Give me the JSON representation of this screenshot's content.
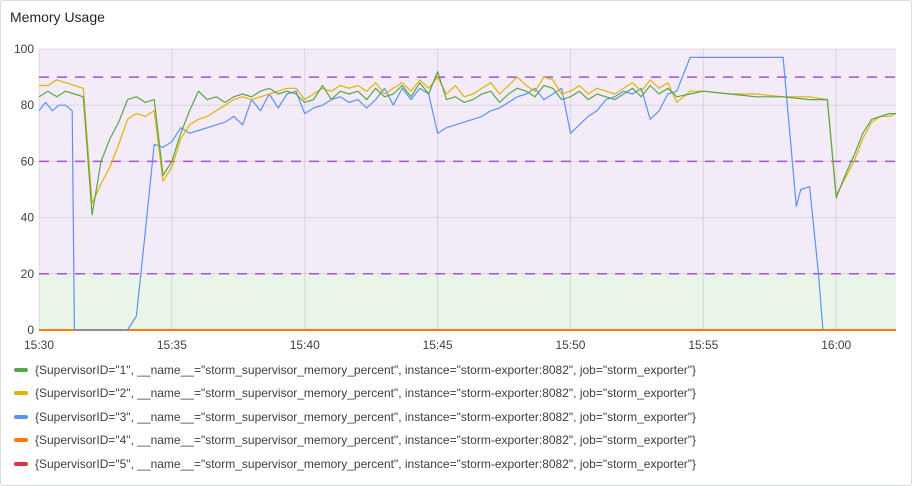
{
  "panel": {
    "title": "Memory Usage"
  },
  "chart_data": {
    "type": "line",
    "title": "Memory Usage",
    "x_range": [
      "15:30",
      "16:02:15"
    ],
    "ylim": [
      0,
      100
    ],
    "y_ticks": [
      0,
      20,
      40,
      60,
      80,
      100
    ],
    "x_ticks": [
      "15:30",
      "15:35",
      "15:40",
      "15:45",
      "15:50",
      "15:55",
      "16:00"
    ],
    "grid": true,
    "thresholds": [
      {
        "value": 20,
        "color": "#a352cc"
      },
      {
        "value": 60,
        "color": "#a352cc"
      },
      {
        "value": 90,
        "color": "#a352cc"
      }
    ],
    "threshold_bands": [
      {
        "from": 0,
        "to": 20,
        "color": "#73bf69"
      },
      {
        "from": 20,
        "to": 100,
        "color": "#b877d9"
      }
    ],
    "legend_placement": "bottom",
    "series": [
      {
        "name": "{SupervisorID=\"1\", __name__=\"storm_supervisor_memory_percent\", instance=\"storm-exporter:8082\", job=\"storm_exporter\"}",
        "color": "#56a64b",
        "x": [
          "15:30:00",
          "15:30:20",
          "15:30:40",
          "15:31:00",
          "15:31:20",
          "15:31:40",
          "15:32:00",
          "15:32:20",
          "15:32:40",
          "15:33:00",
          "15:33:20",
          "15:33:40",
          "15:34:00",
          "15:34:20",
          "15:34:40",
          "15:35:00",
          "15:35:20",
          "15:35:40",
          "15:36:00",
          "15:36:20",
          "15:36:40",
          "15:37:00",
          "15:37:20",
          "15:37:40",
          "15:38:00",
          "15:38:20",
          "15:38:40",
          "15:39:00",
          "15:39:20",
          "15:39:40",
          "15:40:00",
          "15:40:20",
          "15:40:40",
          "15:41:00",
          "15:41:20",
          "15:41:40",
          "15:42:00",
          "15:42:20",
          "15:42:40",
          "15:43:00",
          "15:43:20",
          "15:43:40",
          "15:44:00",
          "15:44:20",
          "15:44:40",
          "15:45:00",
          "15:45:20",
          "15:45:40",
          "15:46:00",
          "15:46:20",
          "15:46:40",
          "15:47:00",
          "15:47:20",
          "15:47:40",
          "15:48:00",
          "15:48:20",
          "15:48:40",
          "15:49:00",
          "15:49:20",
          "15:49:40",
          "15:50:00",
          "15:50:20",
          "15:50:40",
          "15:51:00",
          "15:51:20",
          "15:51:40",
          "15:52:00",
          "15:52:20",
          "15:52:40",
          "15:53:00",
          "15:53:20",
          "15:53:40",
          "15:54:00",
          "15:54:30",
          "15:55:00",
          "15:56:00",
          "15:57:00",
          "15:58:00",
          "15:59:00",
          "15:59:40",
          "16:00:00",
          "16:00:20",
          "16:00:40",
          "16:01:00",
          "16:01:20",
          "16:01:40",
          "16:02:00",
          "16:02:15"
        ],
        "values": [
          83,
          85,
          83,
          85,
          84,
          83,
          41,
          60,
          68,
          74,
          82,
          83,
          81,
          82,
          55,
          60,
          70,
          78,
          85,
          82,
          83,
          81,
          83,
          84,
          83,
          85,
          86,
          84,
          85,
          84,
          81,
          82,
          87,
          82,
          85,
          84,
          85,
          82,
          86,
          83,
          84,
          87,
          83,
          88,
          84,
          92,
          82,
          83,
          81,
          82,
          84,
          85,
          81,
          84,
          86,
          85,
          83,
          87,
          86,
          82,
          83,
          85,
          82,
          84,
          83,
          82,
          84,
          86,
          83,
          87,
          84,
          86,
          83,
          84,
          85,
          84,
          83,
          83,
          82,
          82,
          47,
          55,
          62,
          70,
          75,
          76,
          77,
          77
        ]
      },
      {
        "name": "{SupervisorID=\"2\", __name__=\"storm_supervisor_memory_percent\", instance=\"storm-exporter:8082\", job=\"storm_exporter\"}",
        "color": "#e0b400",
        "x": [
          "15:30:00",
          "15:30:20",
          "15:30:40",
          "15:31:00",
          "15:31:20",
          "15:31:40",
          "15:32:00",
          "15:32:20",
          "15:32:40",
          "15:33:00",
          "15:33:20",
          "15:33:40",
          "15:34:00",
          "15:34:20",
          "15:34:40",
          "15:35:00",
          "15:35:20",
          "15:35:40",
          "15:36:00",
          "15:36:20",
          "15:36:40",
          "15:37:00",
          "15:37:20",
          "15:37:40",
          "15:38:00",
          "15:38:20",
          "15:38:40",
          "15:39:00",
          "15:39:20",
          "15:39:40",
          "15:40:00",
          "15:40:20",
          "15:40:40",
          "15:41:00",
          "15:41:20",
          "15:41:40",
          "15:42:00",
          "15:42:20",
          "15:42:40",
          "15:43:00",
          "15:43:20",
          "15:43:40",
          "15:44:00",
          "15:44:20",
          "15:44:40",
          "15:45:00",
          "15:45:20",
          "15:45:40",
          "15:46:00",
          "15:46:20",
          "15:46:40",
          "15:47:00",
          "15:47:20",
          "15:47:40",
          "15:48:00",
          "15:48:20",
          "15:48:40",
          "15:49:00",
          "15:49:20",
          "15:49:40",
          "15:50:00",
          "15:50:20",
          "15:50:40",
          "15:51:00",
          "15:51:20",
          "15:51:40",
          "15:52:00",
          "15:52:20",
          "15:52:40",
          "15:53:00",
          "15:53:20",
          "15:53:40",
          "15:54:00",
          "15:54:30",
          "15:55:00",
          "15:56:00",
          "15:57:00",
          "15:58:00",
          "15:59:00",
          "15:59:40",
          "16:00:00",
          "16:00:20",
          "16:00:40",
          "16:01:00",
          "16:01:20",
          "16:01:40",
          "16:02:00",
          "16:02:15"
        ],
        "values": [
          87,
          87,
          89,
          88,
          87,
          86,
          45,
          52,
          58,
          66,
          75,
          77,
          76,
          78,
          53,
          58,
          68,
          73,
          75,
          76,
          78,
          80,
          82,
          83,
          82,
          83,
          84,
          85,
          86,
          86,
          82,
          84,
          86,
          85,
          87,
          86,
          87,
          85,
          88,
          84,
          86,
          88,
          85,
          89,
          86,
          90,
          84,
          87,
          83,
          84,
          86,
          88,
          84,
          87,
          90,
          87,
          85,
          90,
          89,
          84,
          85,
          87,
          84,
          86,
          85,
          84,
          86,
          88,
          85,
          89,
          86,
          88,
          81,
          85,
          85,
          84,
          84,
          83,
          83,
          82,
          48,
          54,
          60,
          68,
          74,
          76,
          76,
          77
        ]
      },
      {
        "name": "{SupervisorID=\"3\", __name__=\"storm_supervisor_memory_percent\", instance=\"storm-exporter:8082\", job=\"storm_exporter\"}",
        "color": "#5794f2",
        "x": [
          "15:30:00",
          "15:30:15",
          "15:30:30",
          "15:30:45",
          "15:31:00",
          "15:31:15",
          "15:31:20",
          "15:31:40",
          "15:32:00",
          "15:32:20",
          "15:32:40",
          "15:33:00",
          "15:33:20",
          "15:33:40",
          "15:34:00",
          "15:34:20",
          "15:34:40",
          "15:35:00",
          "15:35:20",
          "15:35:40",
          "15:36:00",
          "15:36:20",
          "15:36:40",
          "15:37:00",
          "15:37:20",
          "15:37:40",
          "15:38:00",
          "15:38:20",
          "15:38:40",
          "15:39:00",
          "15:39:20",
          "15:39:40",
          "15:40:00",
          "15:40:20",
          "15:40:40",
          "15:41:00",
          "15:41:20",
          "15:41:40",
          "15:42:00",
          "15:42:20",
          "15:42:40",
          "15:43:00",
          "15:43:20",
          "15:43:40",
          "15:44:00",
          "15:44:20",
          "15:44:40",
          "15:45:00",
          "15:45:20",
          "15:45:40",
          "15:46:00",
          "15:46:20",
          "15:46:40",
          "15:47:00",
          "15:47:20",
          "15:47:40",
          "15:48:00",
          "15:48:20",
          "15:48:40",
          "15:49:00",
          "15:49:20",
          "15:49:40",
          "15:50:00",
          "15:50:20",
          "15:50:40",
          "15:51:00",
          "15:51:20",
          "15:51:40",
          "15:52:00",
          "15:52:20",
          "15:52:40",
          "15:53:00",
          "15:53:20",
          "15:53:40",
          "15:54:00",
          "15:54:30",
          "15:55:00",
          "15:56:00",
          "15:57:00",
          "15:58:00",
          "15:58:30",
          "15:58:40",
          "15:59:00",
          "15:59:20",
          "15:59:30"
        ],
        "values": [
          78,
          81,
          78,
          80,
          80,
          78,
          0,
          0,
          0,
          0,
          0,
          0,
          0,
          5,
          35,
          66,
          65,
          67,
          72,
          70,
          71,
          72,
          73,
          74,
          76,
          73,
          82,
          78,
          84,
          79,
          84,
          85,
          77,
          79,
          80,
          82,
          83,
          81,
          82,
          79,
          82,
          86,
          80,
          86,
          82,
          86,
          84,
          70,
          72,
          73,
          74,
          75,
          76,
          78,
          79,
          81,
          83,
          84,
          86,
          82,
          84,
          86,
          70,
          73,
          76,
          78,
          82,
          83,
          85,
          84,
          86,
          75,
          78,
          84,
          85,
          97,
          97,
          97,
          97,
          97,
          44,
          50,
          51,
          20,
          0
        ]
      },
      {
        "name": "{SupervisorID=\"4\", __name__=\"storm_supervisor_memory_percent\", instance=\"storm-exporter:8082\", job=\"storm_exporter\"}",
        "color": "#ff780a",
        "x": [
          "15:30:00",
          "16:02:15"
        ],
        "values": [
          0,
          0
        ]
      },
      {
        "name": "{SupervisorID=\"5\", __name__=\"storm_supervisor_memory_percent\", instance=\"storm-exporter:8082\", job=\"storm_exporter\"}",
        "color": "#e02f44",
        "x": [
          "15:30:00",
          "16:02:15"
        ],
        "values": [
          0,
          0
        ]
      }
    ]
  }
}
